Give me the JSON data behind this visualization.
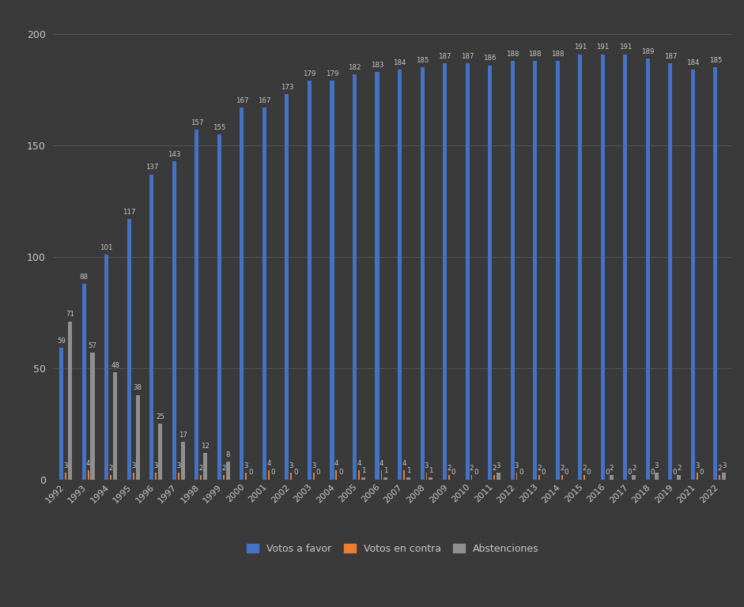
{
  "years": [
    1992,
    1993,
    1994,
    1995,
    1996,
    1997,
    1998,
    1999,
    2000,
    2001,
    2002,
    2003,
    2004,
    2005,
    2006,
    2007,
    2008,
    2009,
    2010,
    2011,
    2012,
    2013,
    2014,
    2015,
    2016,
    2017,
    2018,
    2019,
    2021,
    2022
  ],
  "votos_favor": [
    59,
    88,
    101,
    117,
    137,
    143,
    157,
    155,
    167,
    167,
    173,
    179,
    179,
    182,
    183,
    184,
    185,
    187,
    187,
    186,
    188,
    188,
    188,
    191,
    191,
    191,
    189,
    187,
    184,
    185
  ],
  "votos_contra": [
    3,
    4,
    2,
    3,
    3,
    3,
    2,
    2,
    3,
    4,
    3,
    3,
    4,
    4,
    4,
    4,
    3,
    2,
    2,
    2,
    3,
    2,
    2,
    2,
    0,
    0,
    0,
    0,
    3,
    2
  ],
  "abstenciones": [
    71,
    57,
    48,
    38,
    25,
    17,
    12,
    8,
    0,
    0,
    0,
    0,
    0,
    1,
    1,
    1,
    1,
    0,
    0,
    3,
    0,
    0,
    0,
    0,
    2,
    2,
    3,
    2,
    0,
    3
  ],
  "color_favor": "#4472C4",
  "color_contra": "#ED7D31",
  "color_abstenciones": "#909090",
  "background_color": "#3A3A3A",
  "grid_color": "#555555",
  "text_color": "#C8C8C8",
  "ylim": [
    0,
    210
  ],
  "yticks": [
    0,
    50,
    100,
    150,
    200
  ],
  "legend_labels": [
    "Votos a favor",
    "Votos en contra",
    "Abstenciones"
  ]
}
